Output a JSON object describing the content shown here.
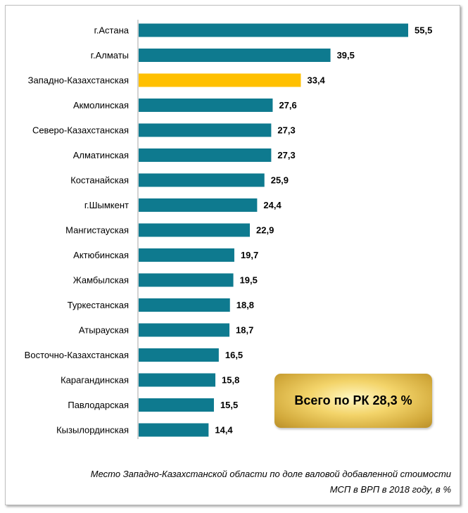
{
  "chart_data": {
    "type": "bar",
    "orientation": "horizontal",
    "categories": [
      "г.Астана",
      "г.Алматы",
      "Западно-Казахстанская",
      "Акмолинская",
      "Северо-Казахстанская",
      "Алматинская",
      "Костанайская",
      "г.Шымкент",
      "Мангистауская",
      "Актюбинская",
      "Жамбылская",
      "Туркестанская",
      "Атырауская",
      "Восточно-Казахстанская",
      "Карагандинская",
      "Павлодарская",
      "Кызылординская"
    ],
    "values": [
      55.5,
      39.5,
      33.4,
      27.6,
      27.3,
      27.3,
      25.9,
      24.4,
      22.9,
      19.7,
      19.5,
      18.8,
      18.7,
      16.5,
      15.8,
      15.5,
      14.4
    ],
    "value_labels": [
      "55,5",
      "39,5",
      "33,4",
      "27,6",
      "27,3",
      "27,3",
      "25,9",
      "24,4",
      "22,9",
      "19,7",
      "19,5",
      "18,8",
      "18,7",
      "16,5",
      "15,8",
      "15,5",
      "14,4"
    ],
    "highlight_index": 2,
    "colors": {
      "bar": "#0E7A8F",
      "highlight": "#FFC000"
    },
    "xlim": [
      0,
      55.5
    ],
    "grid": false,
    "title": "",
    "xlabel": "",
    "ylabel": ""
  },
  "total": {
    "label": "Всего по РК 28,3 %"
  },
  "caption": {
    "line1": "Место Западно-Казахстанской области по доле валовой добавленной стоимости",
    "line2": "МСП  в ВРП в 2018 году, в %"
  }
}
